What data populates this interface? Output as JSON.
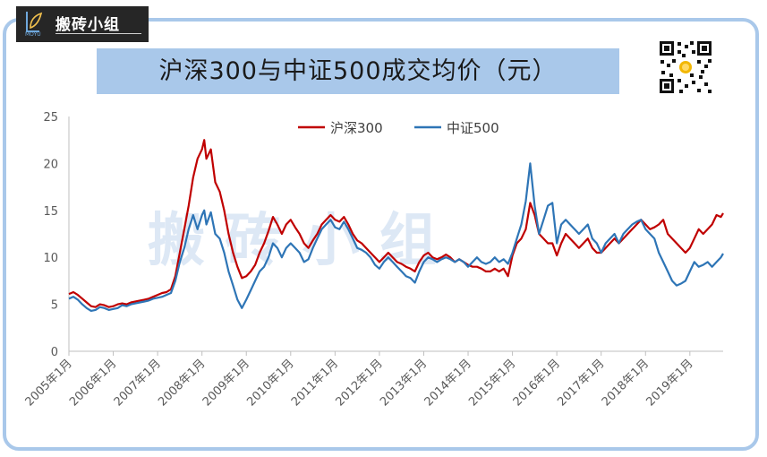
{
  "logo": {
    "brand": "搬砖小组",
    "sub": "MOYU",
    "icon": "leaf-pen-icon"
  },
  "chart_data": {
    "type": "line",
    "title": "沪深300与中证500成交均价（元）",
    "watermark": "搬 砖 小 组",
    "xlabel": "",
    "ylabel": "",
    "ylim": [
      0,
      25
    ],
    "yticks": [
      0,
      5,
      10,
      15,
      20,
      25
    ],
    "xlim": [
      2005.0,
      2019.75
    ],
    "xticks": [
      "2005年1月",
      "2006年1月",
      "2007年1月",
      "2008年1月",
      "2009年1月",
      "2010年1月",
      "2011年1月",
      "2012年1月",
      "2013年1月",
      "2014年1月",
      "2015年1月",
      "2016年1月",
      "2017年1月",
      "2018年1月",
      "2019年1月"
    ],
    "legend_position": "top-center",
    "grid": false,
    "series": [
      {
        "name": "沪深300",
        "color": "#c00000",
        "points": [
          [
            2005.0,
            6.1
          ],
          [
            2005.1,
            6.3
          ],
          [
            2005.2,
            6.0
          ],
          [
            2005.3,
            5.6
          ],
          [
            2005.4,
            5.2
          ],
          [
            2005.5,
            4.8
          ],
          [
            2005.6,
            4.7
          ],
          [
            2005.7,
            5.0
          ],
          [
            2005.8,
            4.9
          ],
          [
            2005.9,
            4.7
          ],
          [
            2006.0,
            4.8
          ],
          [
            2006.1,
            5.0
          ],
          [
            2006.2,
            5.1
          ],
          [
            2006.3,
            5.0
          ],
          [
            2006.4,
            5.2
          ],
          [
            2006.5,
            5.3
          ],
          [
            2006.6,
            5.4
          ],
          [
            2006.7,
            5.5
          ],
          [
            2006.8,
            5.6
          ],
          [
            2006.9,
            5.8
          ],
          [
            2007.0,
            6.0
          ],
          [
            2007.1,
            6.2
          ],
          [
            2007.2,
            6.3
          ],
          [
            2007.3,
            6.6
          ],
          [
            2007.4,
            8.0
          ],
          [
            2007.5,
            10.5
          ],
          [
            2007.6,
            13.0
          ],
          [
            2007.7,
            15.5
          ],
          [
            2007.8,
            18.5
          ],
          [
            2007.9,
            20.5
          ],
          [
            2008.0,
            21.5
          ],
          [
            2008.05,
            22.5
          ],
          [
            2008.1,
            20.5
          ],
          [
            2008.2,
            21.5
          ],
          [
            2008.3,
            18.0
          ],
          [
            2008.4,
            17.0
          ],
          [
            2008.5,
            15.0
          ],
          [
            2008.6,
            12.5
          ],
          [
            2008.7,
            10.5
          ],
          [
            2008.8,
            9.0
          ],
          [
            2008.9,
            7.8
          ],
          [
            2009.0,
            8.0
          ],
          [
            2009.1,
            8.5
          ],
          [
            2009.2,
            9.2
          ],
          [
            2009.3,
            10.5
          ],
          [
            2009.4,
            11.5
          ],
          [
            2009.5,
            12.8
          ],
          [
            2009.6,
            14.3
          ],
          [
            2009.7,
            13.5
          ],
          [
            2009.8,
            12.5
          ],
          [
            2009.9,
            13.5
          ],
          [
            2010.0,
            14.0
          ],
          [
            2010.1,
            13.2
          ],
          [
            2010.2,
            12.5
          ],
          [
            2010.3,
            11.5
          ],
          [
            2010.4,
            11.0
          ],
          [
            2010.5,
            11.8
          ],
          [
            2010.6,
            12.5
          ],
          [
            2010.7,
            13.5
          ],
          [
            2010.8,
            14.0
          ],
          [
            2010.9,
            14.5
          ],
          [
            2011.0,
            14.0
          ],
          [
            2011.1,
            13.8
          ],
          [
            2011.2,
            14.3
          ],
          [
            2011.3,
            13.5
          ],
          [
            2011.4,
            12.5
          ],
          [
            2011.5,
            11.8
          ],
          [
            2011.6,
            11.5
          ],
          [
            2011.7,
            11.0
          ],
          [
            2011.8,
            10.5
          ],
          [
            2011.9,
            10.0
          ],
          [
            2012.0,
            9.5
          ],
          [
            2012.1,
            10.0
          ],
          [
            2012.2,
            10.5
          ],
          [
            2012.3,
            10.0
          ],
          [
            2012.4,
            9.5
          ],
          [
            2012.5,
            9.3
          ],
          [
            2012.6,
            9.0
          ],
          [
            2012.7,
            8.8
          ],
          [
            2012.8,
            8.5
          ],
          [
            2012.9,
            9.5
          ],
          [
            2013.0,
            10.2
          ],
          [
            2013.1,
            10.5
          ],
          [
            2013.2,
            10.0
          ],
          [
            2013.3,
            9.8
          ],
          [
            2013.4,
            10.0
          ],
          [
            2013.5,
            10.3
          ],
          [
            2013.6,
            10.0
          ],
          [
            2013.7,
            9.5
          ],
          [
            2013.8,
            9.8
          ],
          [
            2013.9,
            9.5
          ],
          [
            2014.0,
            9.2
          ],
          [
            2014.1,
            9.0
          ],
          [
            2014.2,
            9.0
          ],
          [
            2014.3,
            8.8
          ],
          [
            2014.4,
            8.5
          ],
          [
            2014.5,
            8.5
          ],
          [
            2014.6,
            8.8
          ],
          [
            2014.7,
            8.5
          ],
          [
            2014.8,
            8.8
          ],
          [
            2014.9,
            8.0
          ],
          [
            2015.0,
            10.2
          ],
          [
            2015.1,
            11.5
          ],
          [
            2015.2,
            12.0
          ],
          [
            2015.3,
            13.0
          ],
          [
            2015.4,
            15.8
          ],
          [
            2015.5,
            14.5
          ],
          [
            2015.6,
            12.5
          ],
          [
            2015.7,
            12.0
          ],
          [
            2015.8,
            11.5
          ],
          [
            2015.9,
            11.5
          ],
          [
            2016.0,
            10.2
          ],
          [
            2016.1,
            11.5
          ],
          [
            2016.2,
            12.5
          ],
          [
            2016.3,
            12.0
          ],
          [
            2016.4,
            11.5
          ],
          [
            2016.5,
            11.0
          ],
          [
            2016.6,
            11.5
          ],
          [
            2016.7,
            12.0
          ],
          [
            2016.8,
            11.0
          ],
          [
            2016.9,
            10.5
          ],
          [
            2017.0,
            10.5
          ],
          [
            2017.1,
            11.0
          ],
          [
            2017.2,
            11.5
          ],
          [
            2017.3,
            12.0
          ],
          [
            2017.4,
            11.5
          ],
          [
            2017.5,
            12.0
          ],
          [
            2017.6,
            12.5
          ],
          [
            2017.7,
            13.0
          ],
          [
            2017.8,
            13.5
          ],
          [
            2017.9,
            14.0
          ],
          [
            2018.0,
            13.5
          ],
          [
            2018.1,
            13.0
          ],
          [
            2018.2,
            13.2
          ],
          [
            2018.3,
            13.5
          ],
          [
            2018.4,
            14.0
          ],
          [
            2018.5,
            12.5
          ],
          [
            2018.6,
            12.0
          ],
          [
            2018.7,
            11.5
          ],
          [
            2018.8,
            11.0
          ],
          [
            2018.9,
            10.5
          ],
          [
            2019.0,
            11.0
          ],
          [
            2019.1,
            12.0
          ],
          [
            2019.2,
            13.0
          ],
          [
            2019.3,
            12.5
          ],
          [
            2019.4,
            13.0
          ],
          [
            2019.5,
            13.5
          ],
          [
            2019.6,
            14.5
          ],
          [
            2019.7,
            14.3
          ],
          [
            2019.75,
            14.7
          ]
        ]
      },
      {
        "name": "中证500",
        "color": "#2e75b6",
        "points": [
          [
            2005.0,
            5.6
          ],
          [
            2005.1,
            5.8
          ],
          [
            2005.2,
            5.5
          ],
          [
            2005.3,
            5.0
          ],
          [
            2005.4,
            4.6
          ],
          [
            2005.5,
            4.3
          ],
          [
            2005.6,
            4.4
          ],
          [
            2005.7,
            4.7
          ],
          [
            2005.8,
            4.6
          ],
          [
            2005.9,
            4.4
          ],
          [
            2006.0,
            4.5
          ],
          [
            2006.1,
            4.6
          ],
          [
            2006.2,
            4.9
          ],
          [
            2006.3,
            4.8
          ],
          [
            2006.4,
            5.0
          ],
          [
            2006.5,
            5.1
          ],
          [
            2006.6,
            5.2
          ],
          [
            2006.7,
            5.3
          ],
          [
            2006.8,
            5.4
          ],
          [
            2006.9,
            5.6
          ],
          [
            2007.0,
            5.7
          ],
          [
            2007.1,
            5.8
          ],
          [
            2007.2,
            6.0
          ],
          [
            2007.3,
            6.2
          ],
          [
            2007.4,
            7.5
          ],
          [
            2007.5,
            9.5
          ],
          [
            2007.6,
            11.0
          ],
          [
            2007.7,
            13.0
          ],
          [
            2007.8,
            14.5
          ],
          [
            2007.9,
            13.0
          ],
          [
            2008.0,
            14.5
          ],
          [
            2008.05,
            15.0
          ],
          [
            2008.1,
            13.5
          ],
          [
            2008.2,
            14.8
          ],
          [
            2008.3,
            12.5
          ],
          [
            2008.4,
            12.0
          ],
          [
            2008.5,
            10.5
          ],
          [
            2008.6,
            8.5
          ],
          [
            2008.7,
            7.0
          ],
          [
            2008.8,
            5.5
          ],
          [
            2008.9,
            4.6
          ],
          [
            2009.0,
            5.5
          ],
          [
            2009.1,
            6.5
          ],
          [
            2009.2,
            7.5
          ],
          [
            2009.3,
            8.5
          ],
          [
            2009.4,
            9.0
          ],
          [
            2009.5,
            10.0
          ],
          [
            2009.6,
            11.5
          ],
          [
            2009.7,
            11.0
          ],
          [
            2009.8,
            10.0
          ],
          [
            2009.9,
            11.0
          ],
          [
            2010.0,
            11.5
          ],
          [
            2010.1,
            11.0
          ],
          [
            2010.2,
            10.5
          ],
          [
            2010.3,
            9.5
          ],
          [
            2010.4,
            9.8
          ],
          [
            2010.5,
            11.0
          ],
          [
            2010.6,
            12.0
          ],
          [
            2010.7,
            13.0
          ],
          [
            2010.8,
            13.5
          ],
          [
            2010.9,
            14.0
          ],
          [
            2011.0,
            13.2
          ],
          [
            2011.1,
            13.0
          ],
          [
            2011.2,
            13.8
          ],
          [
            2011.3,
            13.0
          ],
          [
            2011.4,
            12.0
          ],
          [
            2011.5,
            11.0
          ],
          [
            2011.6,
            10.8
          ],
          [
            2011.7,
            10.5
          ],
          [
            2011.8,
            10.0
          ],
          [
            2011.9,
            9.2
          ],
          [
            2012.0,
            8.8
          ],
          [
            2012.1,
            9.5
          ],
          [
            2012.2,
            10.0
          ],
          [
            2012.3,
            9.5
          ],
          [
            2012.4,
            9.0
          ],
          [
            2012.5,
            8.5
          ],
          [
            2012.6,
            8.0
          ],
          [
            2012.7,
            7.8
          ],
          [
            2012.8,
            7.3
          ],
          [
            2012.9,
            8.5
          ],
          [
            2013.0,
            9.5
          ],
          [
            2013.1,
            10.0
          ],
          [
            2013.2,
            9.8
          ],
          [
            2013.3,
            9.5
          ],
          [
            2013.4,
            9.8
          ],
          [
            2013.5,
            10.0
          ],
          [
            2013.6,
            9.8
          ],
          [
            2013.7,
            9.5
          ],
          [
            2013.8,
            9.8
          ],
          [
            2013.9,
            9.5
          ],
          [
            2014.0,
            9.0
          ],
          [
            2014.1,
            9.5
          ],
          [
            2014.2,
            10.0
          ],
          [
            2014.3,
            9.5
          ],
          [
            2014.4,
            9.3
          ],
          [
            2014.5,
            9.5
          ],
          [
            2014.6,
            10.0
          ],
          [
            2014.7,
            9.5
          ],
          [
            2014.8,
            9.8
          ],
          [
            2014.9,
            9.3
          ],
          [
            2015.0,
            10.5
          ],
          [
            2015.1,
            12.0
          ],
          [
            2015.2,
            13.5
          ],
          [
            2015.3,
            16.0
          ],
          [
            2015.4,
            20.0
          ],
          [
            2015.5,
            15.5
          ],
          [
            2015.6,
            12.5
          ],
          [
            2015.7,
            14.0
          ],
          [
            2015.8,
            15.5
          ],
          [
            2015.9,
            15.8
          ],
          [
            2016.0,
            11.5
          ],
          [
            2016.1,
            13.5
          ],
          [
            2016.2,
            14.0
          ],
          [
            2016.3,
            13.5
          ],
          [
            2016.4,
            13.0
          ],
          [
            2016.5,
            12.5
          ],
          [
            2016.6,
            13.0
          ],
          [
            2016.7,
            13.5
          ],
          [
            2016.8,
            12.0
          ],
          [
            2016.9,
            11.5
          ],
          [
            2017.0,
            10.5
          ],
          [
            2017.1,
            11.5
          ],
          [
            2017.2,
            12.0
          ],
          [
            2017.3,
            12.5
          ],
          [
            2017.4,
            11.5
          ],
          [
            2017.5,
            12.5
          ],
          [
            2017.6,
            13.0
          ],
          [
            2017.7,
            13.5
          ],
          [
            2017.8,
            13.8
          ],
          [
            2017.9,
            14.0
          ],
          [
            2018.0,
            13.0
          ],
          [
            2018.1,
            12.5
          ],
          [
            2018.2,
            12.0
          ],
          [
            2018.3,
            10.5
          ],
          [
            2018.4,
            9.5
          ],
          [
            2018.5,
            8.5
          ],
          [
            2018.6,
            7.5
          ],
          [
            2018.7,
            7.0
          ],
          [
            2018.8,
            7.2
          ],
          [
            2018.9,
            7.5
          ],
          [
            2019.0,
            8.5
          ],
          [
            2019.1,
            9.5
          ],
          [
            2019.2,
            9.0
          ],
          [
            2019.3,
            9.2
          ],
          [
            2019.4,
            9.5
          ],
          [
            2019.5,
            9.0
          ],
          [
            2019.6,
            9.5
          ],
          [
            2019.7,
            10.0
          ],
          [
            2019.75,
            10.4
          ]
        ]
      }
    ]
  }
}
